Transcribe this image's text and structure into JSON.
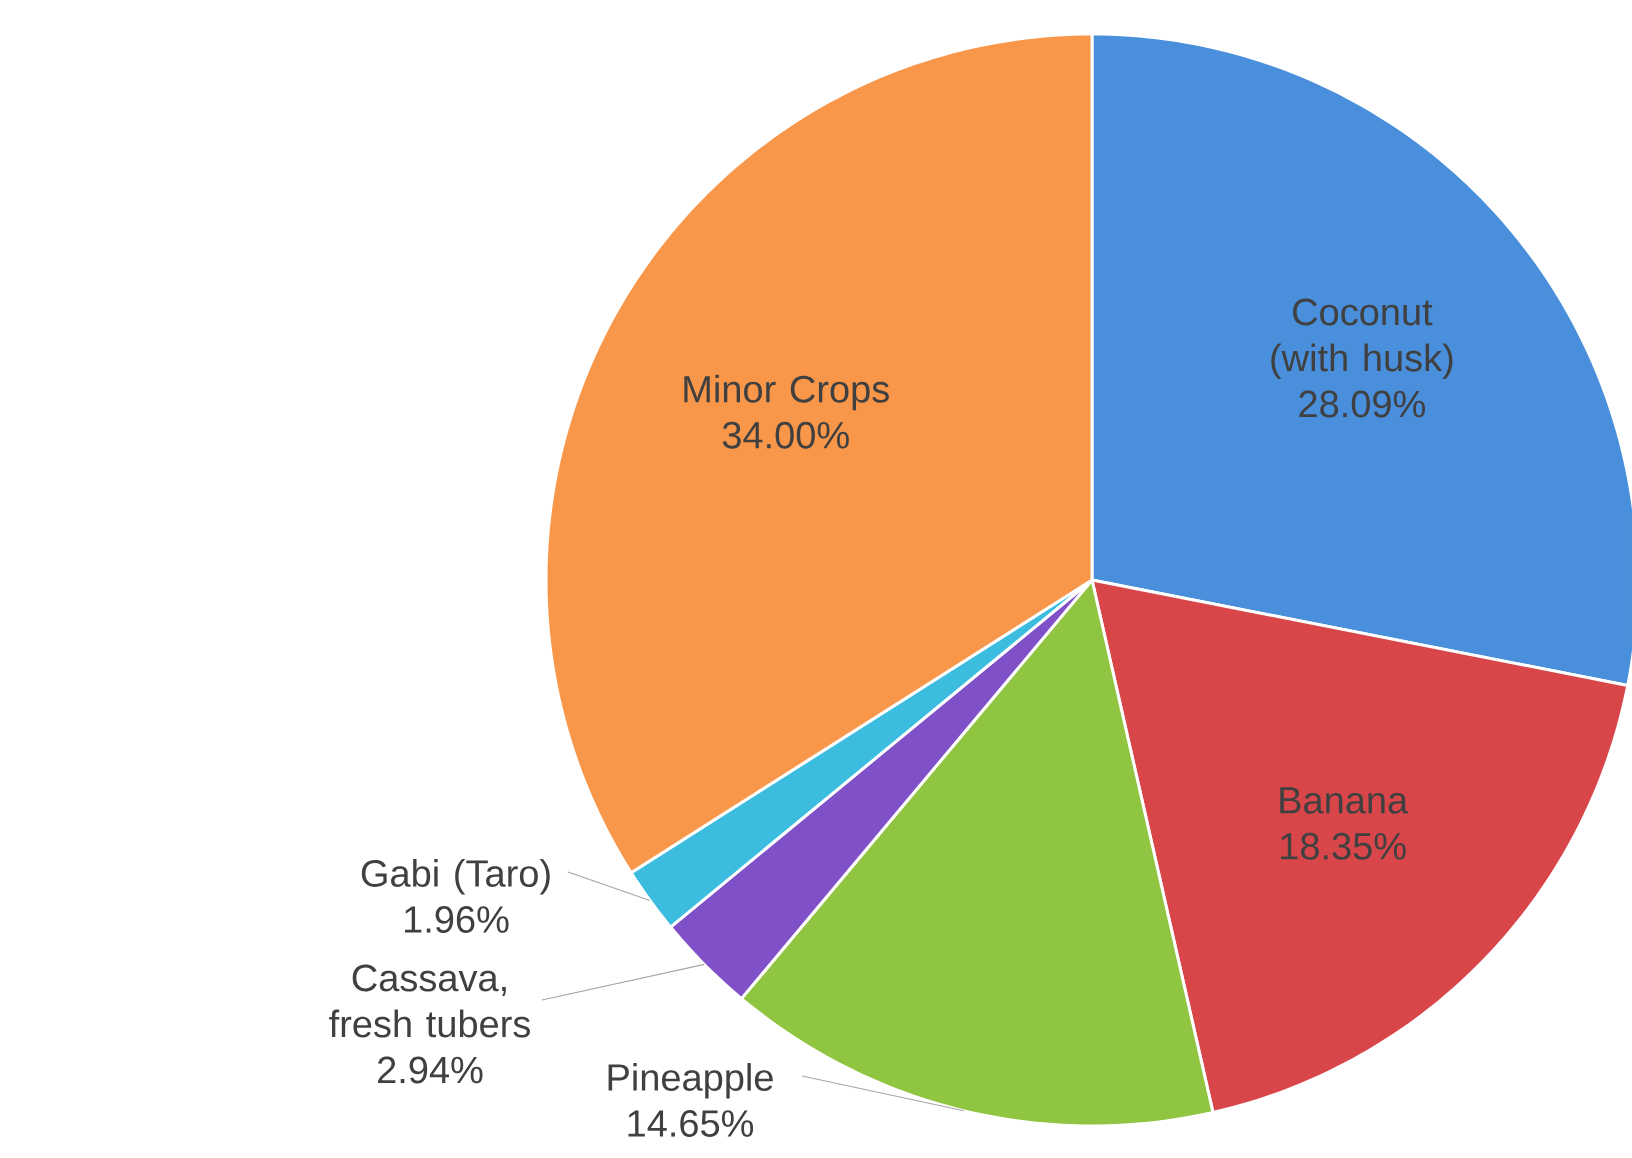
{
  "chart_data": {
    "type": "pie",
    "categories": [
      "Coconut (with husk)",
      "Banana",
      "Pineapple",
      "Cassava, fresh tubers",
      "Gabi (Taro)",
      "Minor Crops"
    ],
    "values": [
      28.09,
      18.35,
      14.65,
      2.94,
      1.96,
      34.0
    ],
    "colors": [
      "#4a8fdb",
      "#d9464a",
      "#8fc540",
      "#8050c8",
      "#3cbde0",
      "#f8964a"
    ],
    "value_labels": [
      "28.09%",
      "18.35%",
      "14.65%",
      "2.94%",
      "1.96%",
      "34.00%"
    ]
  }
}
